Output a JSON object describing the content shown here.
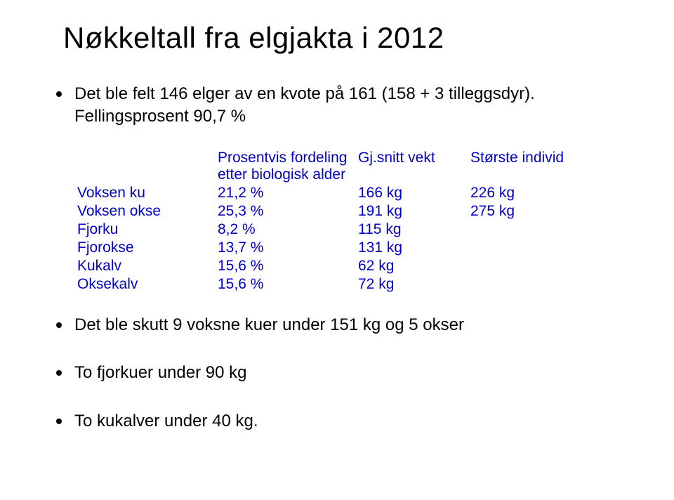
{
  "title": "Nøkkeltall fra elgjakta i 2012",
  "bullets": {
    "intro": "Det ble felt 146 elger av en kvote på 161 (158 + 3 tilleggsdyr). Fellingsprosent 90,7 %",
    "b2": "Det ble skutt 9 voksne kuer under 151 kg og 5 okser",
    "b3": "To fjorkuer under 90 kg",
    "b4": "To kukalver under 40 kg."
  },
  "table": {
    "headers": {
      "col1": "",
      "col2": "Prosentvis fordeling\netter biologisk alder",
      "col3": "Gj.snitt vekt",
      "col4": "Største individ"
    },
    "rows": [
      {
        "label": "Voksen ku",
        "pct": "21,2 %",
        "avg": "166 kg",
        "max": "226 kg"
      },
      {
        "label": "Voksen okse",
        "pct": "25,3 %",
        "avg": "191 kg",
        "max": "275 kg"
      },
      {
        "label": "Fjorku",
        "pct": "8,2 %",
        "avg": "115 kg",
        "max": ""
      },
      {
        "label": "Fjorokse",
        "pct": "13,7 %",
        "avg": "131 kg",
        "max": ""
      },
      {
        "label": "Kukalv",
        "pct": "15,6 %",
        "avg": "62 kg",
        "max": ""
      },
      {
        "label": "Oksekalv",
        "pct": "15,6 %",
        "avg": "72 kg",
        "max": ""
      }
    ],
    "text_color": "#0000c8",
    "font_size_pt": 16
  }
}
